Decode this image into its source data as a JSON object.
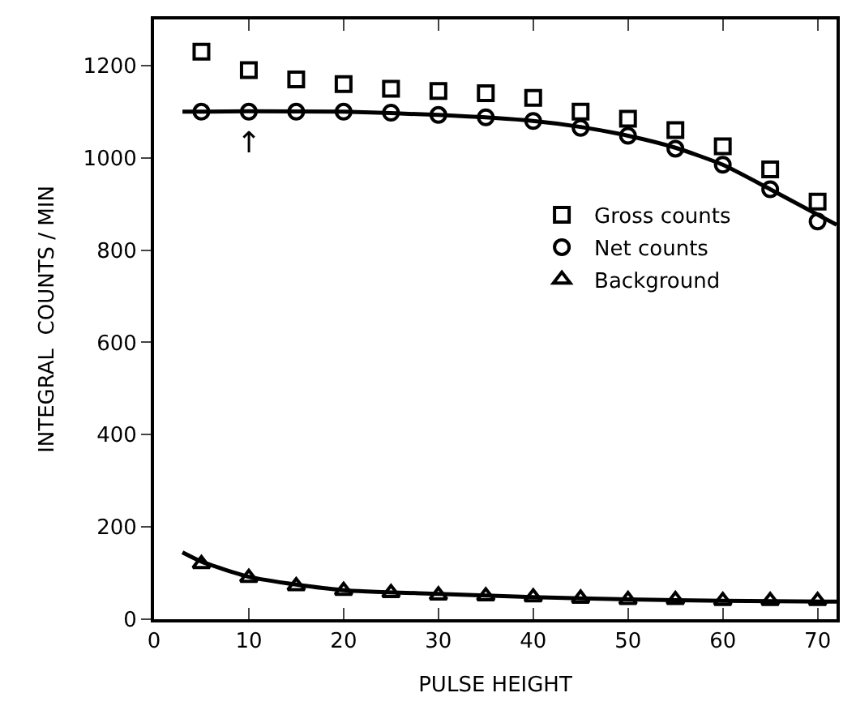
{
  "chart_data": {
    "type": "scatter",
    "xlabel": "PULSE HEIGHT",
    "ylabel": "INTEGRAL  COUNTS / MIN",
    "x": [
      5,
      10,
      15,
      20,
      25,
      30,
      35,
      40,
      45,
      50,
      55,
      60,
      65,
      70
    ],
    "series": [
      {
        "name": "Gross counts",
        "color": "#000000",
        "marker": "square",
        "values": [
          1230,
          1190,
          1170,
          1160,
          1150,
          1145,
          1140,
          1130,
          1100,
          1085,
          1060,
          1025,
          975,
          905
        ]
      },
      {
        "name": "Net counts",
        "color": "#000000",
        "marker": "circle",
        "values": [
          1100,
          1100,
          1100,
          1100,
          1098,
          1093,
          1088,
          1080,
          1065,
          1048,
          1020,
          985,
          932,
          862
        ]
      },
      {
        "name": "Background",
        "color": "#000000",
        "marker": "triangle",
        "values": [
          120,
          90,
          72,
          62,
          57,
          52,
          50,
          48,
          45,
          42,
          42,
          40,
          40,
          40
        ]
      },
      {
        "type": "line",
        "color": "#000000",
        "marker": "none",
        "x": [
          3,
          10,
          20,
          30,
          40,
          45,
          50,
          55,
          60,
          65,
          72
        ],
        "values": [
          1100,
          1101,
          1100,
          1093,
          1080,
          1067,
          1048,
          1022,
          985,
          932,
          855
        ]
      },
      {
        "type": "line",
        "color": "#000000",
        "marker": "none",
        "x": [
          3,
          5,
          10,
          15,
          20,
          30,
          40,
          50,
          60,
          72
        ],
        "values": [
          145,
          125,
          92,
          75,
          63,
          55,
          48,
          43,
          40,
          38
        ]
      }
    ],
    "annotations": [
      {
        "text": "↑",
        "x": 10,
        "y": 1100
      }
    ],
    "xlim": [
      0,
      72
    ],
    "xticks": [
      0,
      10,
      20,
      30,
      40,
      50,
      60,
      70
    ],
    "ylim": [
      0,
      1300
    ],
    "yticks": [
      0,
      200,
      400,
      600,
      800,
      1000,
      1200
    ],
    "legend": "center right"
  }
}
